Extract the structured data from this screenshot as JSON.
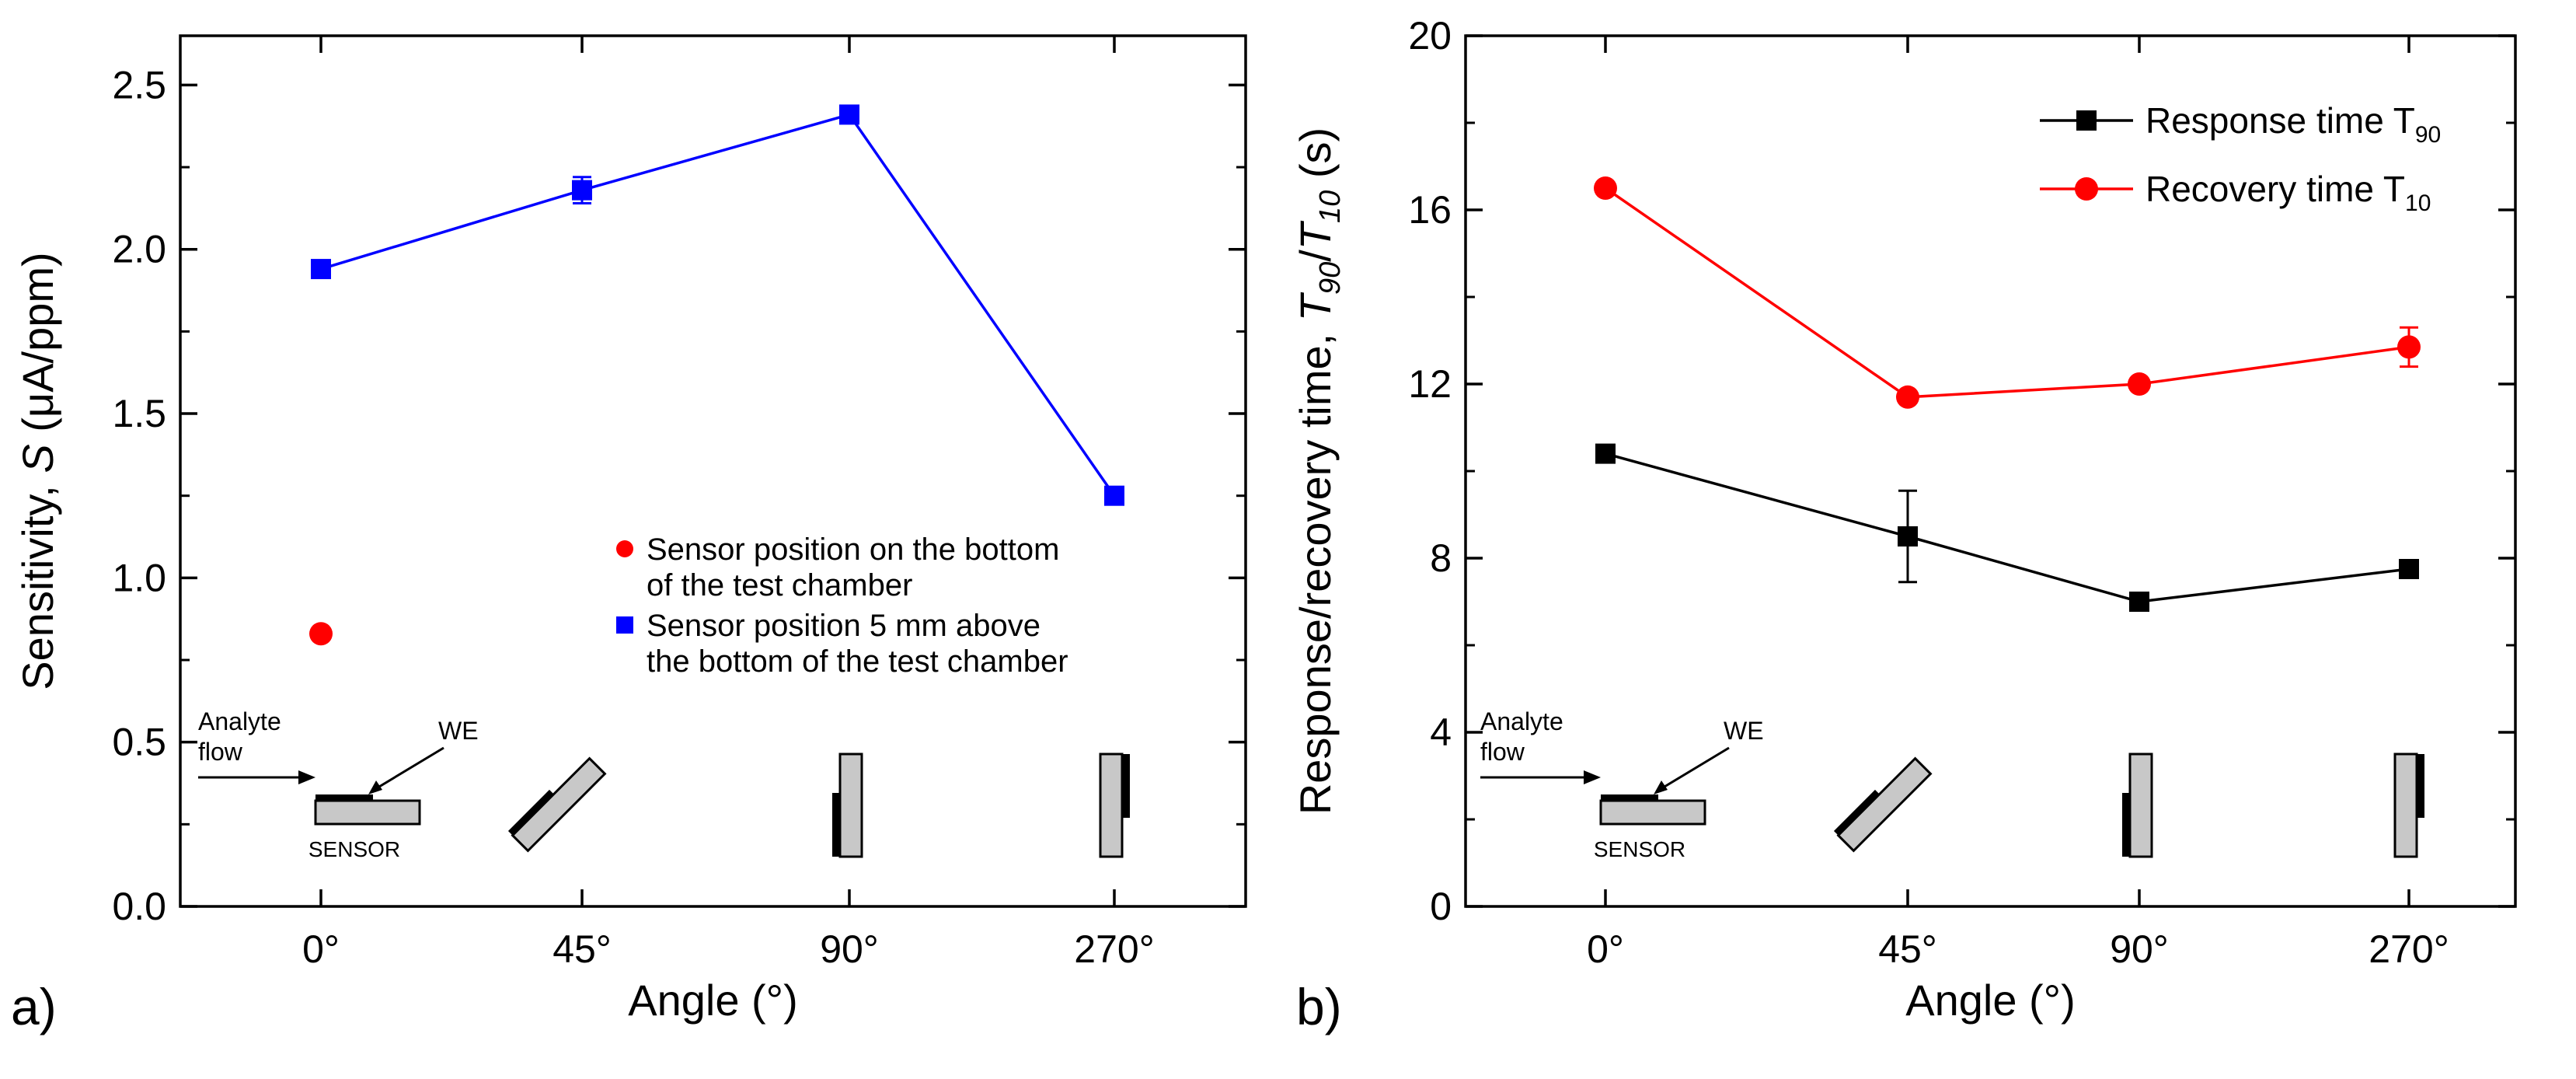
{
  "chart_data": [
    {
      "type": "line",
      "panel_label": "a)",
      "xlabel": "Angle (°)",
      "ylabel": {
        "pre": "Sensitivity, ",
        "italic": "S",
        "post": " (μA/ppm)"
      },
      "categories": [
        "0°",
        "45°",
        "90°",
        "270°"
      ],
      "ylim": [
        0,
        2.65
      ],
      "yticks": [
        0.0,
        0.5,
        1.0,
        1.5,
        2.0,
        2.5
      ],
      "ytick_labels": [
        "0.0",
        "0.5",
        "1.0",
        "1.5",
        "2.0",
        "2.5"
      ],
      "grid": false,
      "legend_position": "center-right",
      "series": [
        {
          "name": "Sensor position on the bottom of the test chamber",
          "legend_lines": [
            "Sensor position on the bottom",
            "of the test chamber"
          ],
          "color": "#ff0000",
          "marker": "circle",
          "connected": false,
          "points": [
            {
              "x": 0,
              "y": 0.83,
              "err": 0
            }
          ]
        },
        {
          "name": "Sensor position 5 mm above the bottom of the test chamber",
          "legend_lines": [
            "Sensor position 5 mm above",
            "the bottom of the test chamber"
          ],
          "color": "#0000ff",
          "marker": "square",
          "connected": true,
          "points": [
            {
              "x": 0,
              "y": 1.94,
              "err": 0
            },
            {
              "x": 1,
              "y": 2.18,
              "err": 0.04
            },
            {
              "x": 2,
              "y": 2.41,
              "err": 0.02
            },
            {
              "x": 3,
              "y": 1.25,
              "err": 0
            }
          ]
        }
      ],
      "inset": {
        "flow_label_1": "Analyte",
        "flow_label_2": "flow",
        "we_label": "WE",
        "sensor_label": "SENSOR"
      }
    },
    {
      "type": "line",
      "panel_label": "b)",
      "xlabel": "Angle (°)",
      "ylabel": {
        "pre": "Response/recovery time, ",
        "t90": "T",
        "t90_sub": "90",
        "slash": "/",
        "t10": "T",
        "t10_sub": "10",
        "post": " (s)"
      },
      "categories": [
        "0°",
        "45°",
        "90°",
        "270°"
      ],
      "ylim": [
        0,
        20
      ],
      "yticks": [
        0,
        4,
        8,
        12,
        16,
        20
      ],
      "ytick_labels": [
        "0",
        "4",
        "8",
        "12",
        "16",
        "20"
      ],
      "grid": false,
      "legend_position": "top-right",
      "series": [
        {
          "name": "Response time T90",
          "label_main": "Response time T",
          "label_sub": "90",
          "color": "#000000",
          "marker": "square",
          "connected": true,
          "points": [
            {
              "x": 0,
              "y": 10.4,
              "err": 0.15
            },
            {
              "x": 1,
              "y": 8.5,
              "err": 1.05
            },
            {
              "x": 2,
              "y": 7.0,
              "err": 0
            },
            {
              "x": 3,
              "y": 7.75,
              "err": 0
            }
          ]
        },
        {
          "name": "Recovery time T10",
          "label_main": "Recovery time T",
          "label_sub": "10",
          "color": "#ff0000",
          "marker": "circle",
          "connected": true,
          "points": [
            {
              "x": 0,
              "y": 16.5,
              "err": 0
            },
            {
              "x": 1,
              "y": 11.7,
              "err": 0
            },
            {
              "x": 2,
              "y": 12.0,
              "err": 0
            },
            {
              "x": 3,
              "y": 12.85,
              "err": 0.45
            }
          ]
        }
      ],
      "inset": {
        "flow_label_1": "Analyte",
        "flow_label_2": "flow",
        "we_label": "WE",
        "sensor_label": "SENSOR"
      }
    }
  ]
}
